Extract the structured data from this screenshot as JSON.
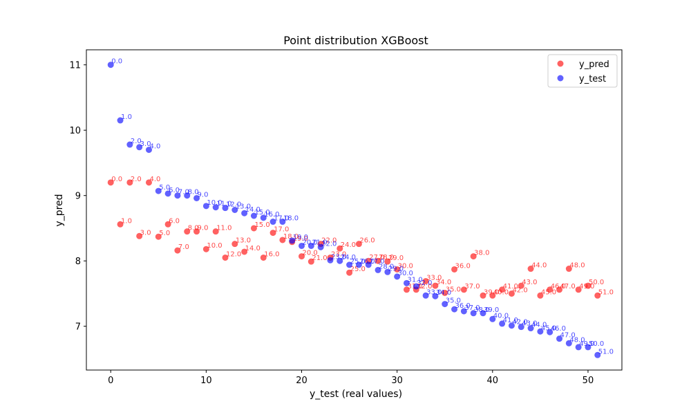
{
  "chart_data": {
    "type": "scatter",
    "title": "Point distribution XGBoost",
    "xlabel": "y_test (real values)",
    "ylabel": "y_pred",
    "xlim": [
      -2.55,
      53.55
    ],
    "ylim": [
      6.33,
      11.23
    ],
    "xticks": [
      "0",
      "10",
      "20",
      "30",
      "40",
      "50"
    ],
    "yticks": [
      "7",
      "8",
      "9",
      "10",
      "11"
    ],
    "legend_position": "top-right",
    "grid": false,
    "series": [
      {
        "name": "y_pred",
        "color": "#ff0000",
        "points": [
          {
            "x": 0,
            "y": 9.2,
            "label": "0.0"
          },
          {
            "x": 1,
            "y": 8.56,
            "label": "1.0"
          },
          {
            "x": 2,
            "y": 9.2,
            "label": "2.0"
          },
          {
            "x": 3,
            "y": 8.38,
            "label": "3.0"
          },
          {
            "x": 4,
            "y": 9.2,
            "label": "4.0"
          },
          {
            "x": 5,
            "y": 8.37,
            "label": "5.0"
          },
          {
            "x": 6,
            "y": 8.56,
            "label": "6.0"
          },
          {
            "x": 7,
            "y": 8.16,
            "label": "7.0"
          },
          {
            "x": 8,
            "y": 8.45,
            "label": "8.0"
          },
          {
            "x": 9,
            "y": 8.45,
            "label": "9.0"
          },
          {
            "x": 10,
            "y": 8.18,
            "label": "10.0"
          },
          {
            "x": 11,
            "y": 8.45,
            "label": "11.0"
          },
          {
            "x": 12,
            "y": 8.05,
            "label": "12.0"
          },
          {
            "x": 13,
            "y": 8.26,
            "label": "13.0"
          },
          {
            "x": 14,
            "y": 8.14,
            "label": "14.0"
          },
          {
            "x": 15,
            "y": 8.5,
            "label": "15.0"
          },
          {
            "x": 16,
            "y": 8.05,
            "label": "16.0"
          },
          {
            "x": 17,
            "y": 8.43,
            "label": "17.0"
          },
          {
            "x": 18,
            "y": 8.32,
            "label": "18.0"
          },
          {
            "x": 19,
            "y": 8.29,
            "label": "19.0"
          },
          {
            "x": 20,
            "y": 8.07,
            "label": "20.0"
          },
          {
            "x": 21,
            "y": 7.99,
            "label": "21.0"
          },
          {
            "x": 22,
            "y": 8.26,
            "label": "22.0"
          },
          {
            "x": 23,
            "y": 8.05,
            "label": "23.0"
          },
          {
            "x": 24,
            "y": 8.19,
            "label": "24.0"
          },
          {
            "x": 25,
            "y": 7.82,
            "label": "25.0"
          },
          {
            "x": 26,
            "y": 8.26,
            "label": "26.0"
          },
          {
            "x": 27,
            "y": 8.0,
            "label": "27.0"
          },
          {
            "x": 28,
            "y": 8.0,
            "label": "28.0"
          },
          {
            "x": 29,
            "y": 7.99,
            "label": "29.0"
          },
          {
            "x": 30,
            "y": 7.87,
            "label": "30.0"
          },
          {
            "x": 31,
            "y": 7.56,
            "label": "31.0"
          },
          {
            "x": 32,
            "y": 7.56,
            "label": "32.0"
          },
          {
            "x": 33,
            "y": 7.69,
            "label": "33.0"
          },
          {
            "x": 34,
            "y": 7.62,
            "label": "34.0"
          },
          {
            "x": 35,
            "y": 7.51,
            "label": "35.0"
          },
          {
            "x": 36,
            "y": 7.87,
            "label": "36.0"
          },
          {
            "x": 37,
            "y": 7.56,
            "label": "37.0"
          },
          {
            "x": 38,
            "y": 8.07,
            "label": "38.0"
          },
          {
            "x": 39,
            "y": 7.47,
            "label": "39.0"
          },
          {
            "x": 40,
            "y": 7.47,
            "label": "40.0"
          },
          {
            "x": 41,
            "y": 7.56,
            "label": "41.0"
          },
          {
            "x": 42,
            "y": 7.5,
            "label": "42.0"
          },
          {
            "x": 43,
            "y": 7.62,
            "label": "43.0"
          },
          {
            "x": 44,
            "y": 7.88,
            "label": "44.0"
          },
          {
            "x": 45,
            "y": 7.47,
            "label": "45.0"
          },
          {
            "x": 46,
            "y": 7.56,
            "label": "46.0"
          },
          {
            "x": 47,
            "y": 7.56,
            "label": "47.0"
          },
          {
            "x": 48,
            "y": 7.88,
            "label": "48.0"
          },
          {
            "x": 49,
            "y": 7.56,
            "label": "49.0"
          },
          {
            "x": 50,
            "y": 7.62,
            "label": "50.0"
          },
          {
            "x": 51,
            "y": 7.47,
            "label": "51.0"
          }
        ]
      },
      {
        "name": "y_test",
        "color": "#0000ff",
        "points": [
          {
            "x": 0,
            "y": 11.0,
            "label": "0.0"
          },
          {
            "x": 1,
            "y": 10.15,
            "label": "1.0"
          },
          {
            "x": 2,
            "y": 9.78,
            "label": "2.0"
          },
          {
            "x": 3,
            "y": 9.74,
            "label": "3.0"
          },
          {
            "x": 4,
            "y": 9.7,
            "label": "4.0"
          },
          {
            "x": 5,
            "y": 9.07,
            "label": "5.0"
          },
          {
            "x": 6,
            "y": 9.03,
            "label": "6.0"
          },
          {
            "x": 7,
            "y": 9.0,
            "label": "7.0"
          },
          {
            "x": 8,
            "y": 9.0,
            "label": "8.0"
          },
          {
            "x": 9,
            "y": 8.96,
            "label": "9.0"
          },
          {
            "x": 10,
            "y": 8.84,
            "label": "10.0"
          },
          {
            "x": 11,
            "y": 8.82,
            "label": "11.0"
          },
          {
            "x": 12,
            "y": 8.81,
            "label": "12.0"
          },
          {
            "x": 13,
            "y": 8.78,
            "label": "13.0"
          },
          {
            "x": 14,
            "y": 8.73,
            "label": "14.0"
          },
          {
            "x": 15,
            "y": 8.69,
            "label": "15.0"
          },
          {
            "x": 16,
            "y": 8.66,
            "label": "16.0"
          },
          {
            "x": 17,
            "y": 8.6,
            "label": "17.0"
          },
          {
            "x": 18,
            "y": 8.6,
            "label": "18.0"
          },
          {
            "x": 19,
            "y": 8.31,
            "label": "19.0"
          },
          {
            "x": 20,
            "y": 8.23,
            "label": "20.0"
          },
          {
            "x": 21,
            "y": 8.23,
            "label": "21.0"
          },
          {
            "x": 22,
            "y": 8.21,
            "label": "22.0"
          },
          {
            "x": 23,
            "y": 8.01,
            "label": "23.0"
          },
          {
            "x": 24,
            "y": 8.0,
            "label": "24.0"
          },
          {
            "x": 25,
            "y": 7.94,
            "label": "25.0"
          },
          {
            "x": 26,
            "y": 7.94,
            "label": "26.0"
          },
          {
            "x": 27,
            "y": 7.94,
            "label": "27.0"
          },
          {
            "x": 28,
            "y": 7.86,
            "label": "28.0"
          },
          {
            "x": 29,
            "y": 7.83,
            "label": "29.0"
          },
          {
            "x": 30,
            "y": 7.76,
            "label": "30.0"
          },
          {
            "x": 31,
            "y": 7.66,
            "label": "31.0"
          },
          {
            "x": 32,
            "y": 7.61,
            "label": "32.0"
          },
          {
            "x": 33,
            "y": 7.47,
            "label": "33.0"
          },
          {
            "x": 34,
            "y": 7.46,
            "label": "34.0"
          },
          {
            "x": 35,
            "y": 7.34,
            "label": "35.0"
          },
          {
            "x": 36,
            "y": 7.26,
            "label": "36.0"
          },
          {
            "x": 37,
            "y": 7.23,
            "label": "37.0"
          },
          {
            "x": 38,
            "y": 7.2,
            "label": "38.0"
          },
          {
            "x": 39,
            "y": 7.2,
            "label": "39.0"
          },
          {
            "x": 40,
            "y": 7.11,
            "label": "40.0"
          },
          {
            "x": 41,
            "y": 7.04,
            "label": "41.0"
          },
          {
            "x": 42,
            "y": 7.01,
            "label": "42.0"
          },
          {
            "x": 43,
            "y": 6.99,
            "label": "43.0"
          },
          {
            "x": 44,
            "y": 6.97,
            "label": "44.0"
          },
          {
            "x": 45,
            "y": 6.92,
            "label": "45.0"
          },
          {
            "x": 46,
            "y": 6.91,
            "label": "46.0"
          },
          {
            "x": 47,
            "y": 6.81,
            "label": "47.0"
          },
          {
            "x": 48,
            "y": 6.74,
            "label": "48.0"
          },
          {
            "x": 49,
            "y": 6.68,
            "label": "49.0"
          },
          {
            "x": 50,
            "y": 6.68,
            "label": "50.0"
          },
          {
            "x": 51,
            "y": 6.56,
            "label": "51.0"
          }
        ]
      }
    ]
  }
}
